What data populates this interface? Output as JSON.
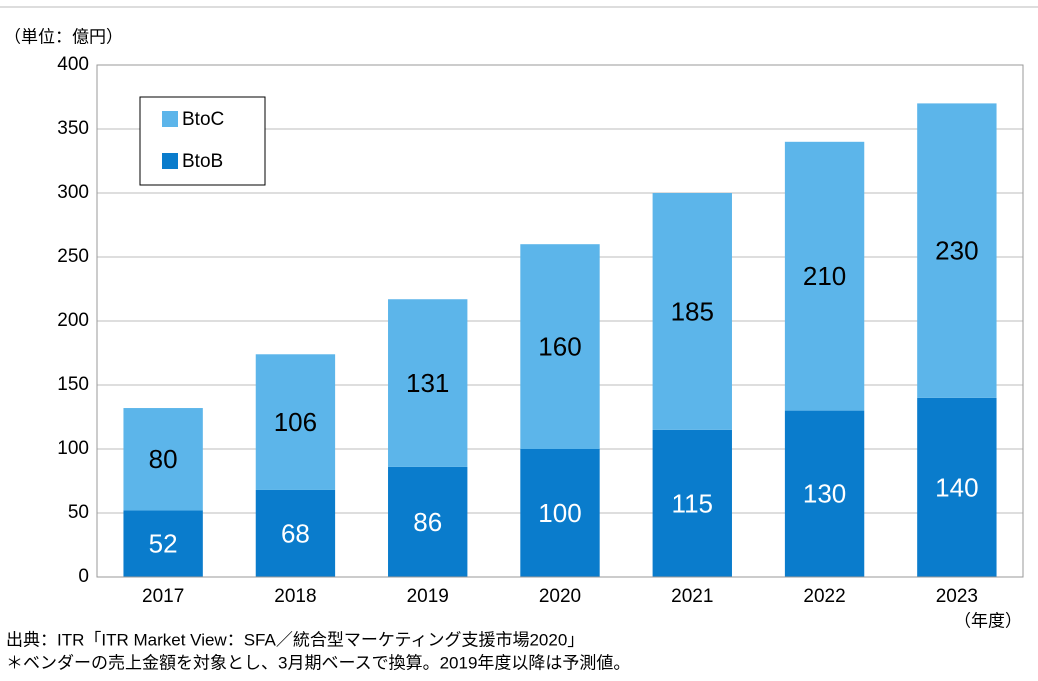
{
  "chart_data": {
    "type": "stacked_bar",
    "unit_label": "（単位：億円）",
    "x_label": "（年度）",
    "notes": [
      "出典：ITR「ITR Market View：SFA／統合型マーケティング支援市場2020」",
      "＊ベンダーの売上金額を対象とし、3月期ベースで換算。2019年度以降は予測値。"
    ],
    "categories": [
      "2017",
      "2018",
      "2019",
      "2020",
      "2021",
      "2022",
      "2023"
    ],
    "series": [
      {
        "name": "BtoB",
        "color": "#0a7ccc",
        "label_color": "#ffffff",
        "values": [
          52,
          68,
          86,
          100,
          115,
          130,
          140
        ]
      },
      {
        "name": "BtoC",
        "color": "#5cb5ea",
        "label_color": "#000000",
        "values": [
          80,
          106,
          131,
          160,
          185,
          210,
          230
        ]
      }
    ],
    "ylim": [
      0,
      400
    ],
    "yticks": [
      0,
      50,
      100,
      150,
      200,
      250,
      300,
      350,
      400
    ],
    "grid": true,
    "legend": "upper left"
  }
}
